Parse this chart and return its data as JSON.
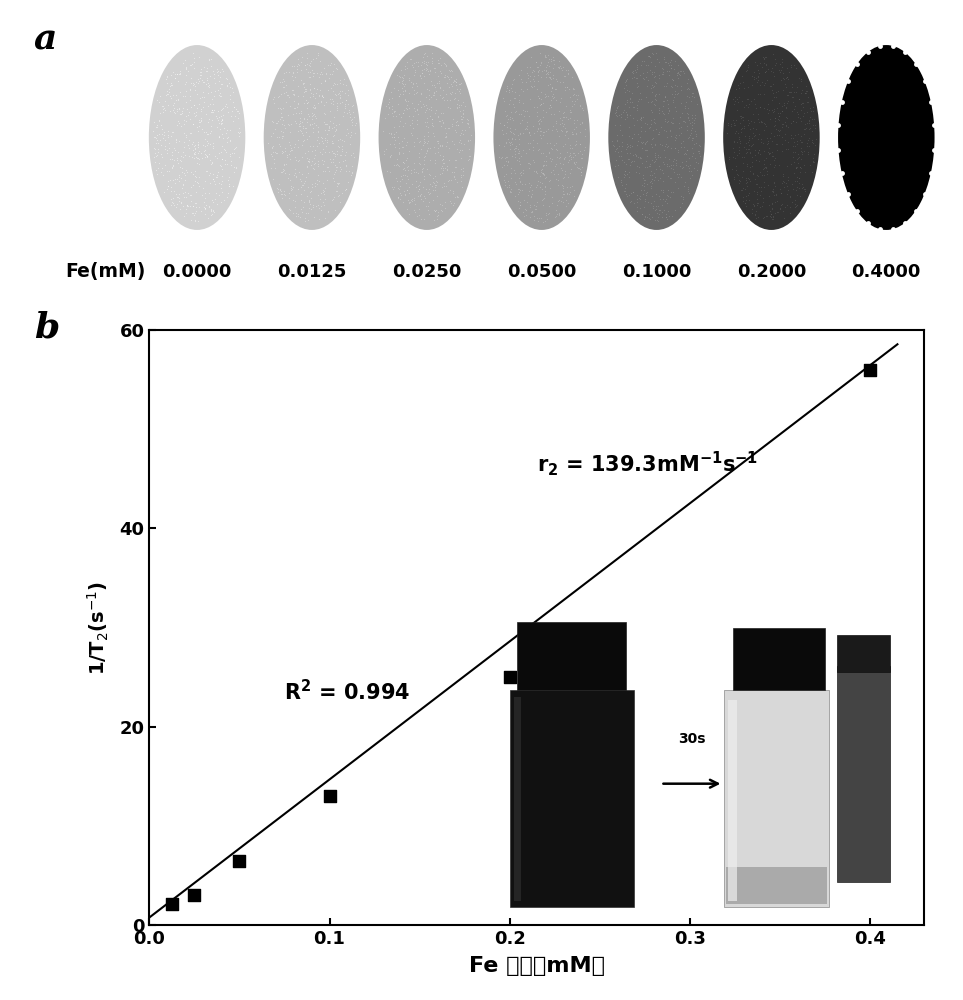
{
  "panel_a_label": "a",
  "panel_b_label": "b",
  "fe_concentrations": [
    "0.0000",
    "0.0125",
    "0.0250",
    "0.0500",
    "0.1000",
    "0.2000",
    "0.4000"
  ],
  "fe_label": "Fe(mM)",
  "circle_grayscales": [
    0.82,
    0.75,
    0.68,
    0.6,
    0.42,
    0.2,
    0.0
  ],
  "scatter_x_plot": [
    0.0125,
    0.025,
    0.05,
    0.1,
    0.2,
    0.4
  ],
  "scatter_y_plot": [
    2.1,
    3.0,
    6.5,
    13.0,
    25.0,
    56.0
  ],
  "line_slope": 139.3,
  "line_intercept": 0.75,
  "r2_text": "R",
  "eq_label": "r",
  "xlabel": "Fe 浓度（mM）",
  "ylabel": "1/T",
  "xlim": [
    0.0,
    0.43
  ],
  "ylim": [
    0.0,
    60.0
  ],
  "yticks": [
    0,
    20,
    40,
    60
  ],
  "xticks": [
    0.0,
    0.1,
    0.2,
    0.3,
    0.4
  ]
}
